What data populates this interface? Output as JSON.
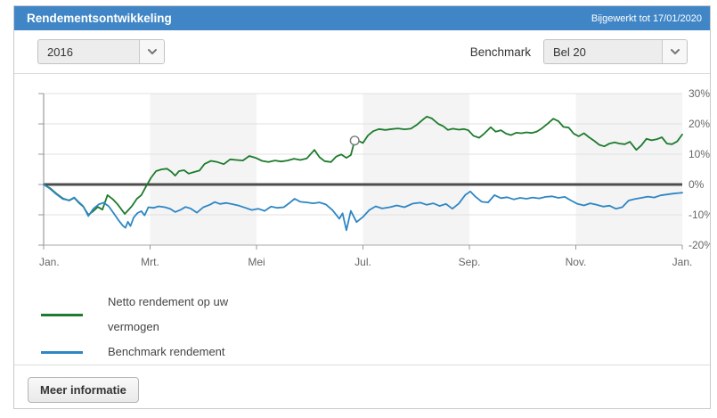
{
  "header": {
    "title": "Rendementsontwikkeling",
    "updated": "Bijgewerkt tot 17/01/2020",
    "bar_color": "#4086c6"
  },
  "controls": {
    "year_value": "2016",
    "benchmark_label": "Benchmark",
    "benchmark_value": "Bel 20"
  },
  "footer": {
    "more_info_label": "Meer informatie"
  },
  "chart_data": {
    "type": "line",
    "title": "Rendementsontwikkeling 2016",
    "x_tick_labels": [
      "Jan.",
      "Mrt.",
      "Mei",
      "Jul.",
      "Sep.",
      "Nov.",
      "Jan."
    ],
    "y_tick_labels": [
      "30%",
      "20%",
      "10%",
      "0%",
      "-10%",
      "-20%"
    ],
    "y_tick_values": [
      30,
      20,
      10,
      0,
      -10,
      -20
    ],
    "ylim": [
      -20,
      30
    ],
    "xlim_months": [
      0,
      12
    ],
    "grid": true,
    "shaded_month_bands": [
      [
        2,
        4
      ],
      [
        6,
        8
      ],
      [
        10,
        12
      ]
    ],
    "band_color": "#f4f4f4",
    "zero_line_color": "#4d4d4d",
    "legend_position": "bottom-left",
    "marker": {
      "series_index": 0,
      "x": 0.487,
      "value": 14.5
    },
    "series": [
      {
        "name": "Netto rendement op uw vermogen",
        "color": "#1e7b2d",
        "points": [
          [
            0.0,
            0.0
          ],
          [
            0.01,
            -1.2
          ],
          [
            0.02,
            -3.0
          ],
          [
            0.03,
            -4.6
          ],
          [
            0.04,
            -5.3
          ],
          [
            0.048,
            -4.4
          ],
          [
            0.055,
            -6.0
          ],
          [
            0.062,
            -7.3
          ],
          [
            0.07,
            -10.0
          ],
          [
            0.077,
            -8.9
          ],
          [
            0.085,
            -7.4
          ],
          [
            0.092,
            -8.3
          ],
          [
            0.1,
            -3.5
          ],
          [
            0.108,
            -4.8
          ],
          [
            0.116,
            -6.6
          ],
          [
            0.127,
            -9.7
          ],
          [
            0.138,
            -7.2
          ],
          [
            0.146,
            -4.7
          ],
          [
            0.153,
            -3.5
          ],
          [
            0.16,
            -0.8
          ],
          [
            0.168,
            2.2
          ],
          [
            0.176,
            4.4
          ],
          [
            0.185,
            5.0
          ],
          [
            0.193,
            5.2
          ],
          [
            0.2,
            4.2
          ],
          [
            0.206,
            2.9
          ],
          [
            0.212,
            4.4
          ],
          [
            0.22,
            4.7
          ],
          [
            0.227,
            3.6
          ],
          [
            0.235,
            4.1
          ],
          [
            0.244,
            4.6
          ],
          [
            0.252,
            6.8
          ],
          [
            0.262,
            7.8
          ],
          [
            0.272,
            7.4
          ],
          [
            0.282,
            6.7
          ],
          [
            0.292,
            8.3
          ],
          [
            0.302,
            8.1
          ],
          [
            0.312,
            7.9
          ],
          [
            0.322,
            9.4
          ],
          [
            0.332,
            8.8
          ],
          [
            0.342,
            7.8
          ],
          [
            0.352,
            7.4
          ],
          [
            0.362,
            7.9
          ],
          [
            0.372,
            7.6
          ],
          [
            0.382,
            7.9
          ],
          [
            0.392,
            8.5
          ],
          [
            0.402,
            8.1
          ],
          [
            0.412,
            8.6
          ],
          [
            0.424,
            11.4
          ],
          [
            0.432,
            9.0
          ],
          [
            0.44,
            7.7
          ],
          [
            0.45,
            7.4
          ],
          [
            0.458,
            9.2
          ],
          [
            0.466,
            9.9
          ],
          [
            0.474,
            8.8
          ],
          [
            0.481,
            9.7
          ],
          [
            0.487,
            14.5
          ],
          [
            0.494,
            14.3
          ],
          [
            0.5,
            13.7
          ],
          [
            0.508,
            16.2
          ],
          [
            0.516,
            17.6
          ],
          [
            0.525,
            18.3
          ],
          [
            0.535,
            18.0
          ],
          [
            0.545,
            18.3
          ],
          [
            0.555,
            18.5
          ],
          [
            0.565,
            18.2
          ],
          [
            0.575,
            18.4
          ],
          [
            0.585,
            19.8
          ],
          [
            0.595,
            21.6
          ],
          [
            0.6,
            22.4
          ],
          [
            0.608,
            21.8
          ],
          [
            0.618,
            20.0
          ],
          [
            0.626,
            19.2
          ],
          [
            0.633,
            18.0
          ],
          [
            0.641,
            18.4
          ],
          [
            0.65,
            18.1
          ],
          [
            0.658,
            18.3
          ],
          [
            0.665,
            17.9
          ],
          [
            0.673,
            16.1
          ],
          [
            0.682,
            15.4
          ],
          [
            0.69,
            16.8
          ],
          [
            0.7,
            18.9
          ],
          [
            0.708,
            17.4
          ],
          [
            0.716,
            17.9
          ],
          [
            0.724,
            16.8
          ],
          [
            0.732,
            16.3
          ],
          [
            0.74,
            17.1
          ],
          [
            0.748,
            16.9
          ],
          [
            0.756,
            17.2
          ],
          [
            0.764,
            17.0
          ],
          [
            0.772,
            17.4
          ],
          [
            0.78,
            18.5
          ],
          [
            0.79,
            20.2
          ],
          [
            0.798,
            21.7
          ],
          [
            0.806,
            20.9
          ],
          [
            0.814,
            19.0
          ],
          [
            0.822,
            18.8
          ],
          [
            0.83,
            16.8
          ],
          [
            0.838,
            15.9
          ],
          [
            0.846,
            16.9
          ],
          [
            0.854,
            15.6
          ],
          [
            0.862,
            14.4
          ],
          [
            0.87,
            13.1
          ],
          [
            0.878,
            12.6
          ],
          [
            0.886,
            13.5
          ],
          [
            0.894,
            13.9
          ],
          [
            0.902,
            13.5
          ],
          [
            0.91,
            13.3
          ],
          [
            0.918,
            14.1
          ],
          [
            0.928,
            11.4
          ],
          [
            0.936,
            12.9
          ],
          [
            0.944,
            15.1
          ],
          [
            0.952,
            14.6
          ],
          [
            0.96,
            14.9
          ],
          [
            0.968,
            15.6
          ],
          [
            0.976,
            13.5
          ],
          [
            0.984,
            13.3
          ],
          [
            0.992,
            14.2
          ],
          [
            1.0,
            16.5
          ]
        ]
      },
      {
        "name": "Benchmark rendement",
        "color": "#2e86c4",
        "points": [
          [
            0.0,
            0.0
          ],
          [
            0.01,
            -1.4
          ],
          [
            0.02,
            -3.2
          ],
          [
            0.03,
            -4.8
          ],
          [
            0.04,
            -5.2
          ],
          [
            0.048,
            -4.3
          ],
          [
            0.055,
            -5.8
          ],
          [
            0.062,
            -7.2
          ],
          [
            0.07,
            -10.4
          ],
          [
            0.078,
            -8.0
          ],
          [
            0.086,
            -6.6
          ],
          [
            0.094,
            -6.0
          ],
          [
            0.102,
            -7.2
          ],
          [
            0.11,
            -9.6
          ],
          [
            0.118,
            -12.0
          ],
          [
            0.124,
            -13.6
          ],
          [
            0.128,
            -14.3
          ],
          [
            0.132,
            -12.3
          ],
          [
            0.136,
            -13.7
          ],
          [
            0.141,
            -10.9
          ],
          [
            0.147,
            -9.4
          ],
          [
            0.153,
            -8.8
          ],
          [
            0.158,
            -10.2
          ],
          [
            0.164,
            -7.5
          ],
          [
            0.172,
            -7.7
          ],
          [
            0.18,
            -7.2
          ],
          [
            0.19,
            -7.5
          ],
          [
            0.198,
            -8.0
          ],
          [
            0.206,
            -9.1
          ],
          [
            0.214,
            -8.4
          ],
          [
            0.222,
            -7.4
          ],
          [
            0.23,
            -7.9
          ],
          [
            0.24,
            -9.3
          ],
          [
            0.25,
            -7.5
          ],
          [
            0.26,
            -6.7
          ],
          [
            0.268,
            -5.8
          ],
          [
            0.276,
            -6.4
          ],
          [
            0.286,
            -6.1
          ],
          [
            0.296,
            -6.5
          ],
          [
            0.306,
            -7.0
          ],
          [
            0.316,
            -7.7
          ],
          [
            0.326,
            -8.4
          ],
          [
            0.336,
            -8.0
          ],
          [
            0.346,
            -8.7
          ],
          [
            0.356,
            -7.3
          ],
          [
            0.366,
            -7.7
          ],
          [
            0.376,
            -7.5
          ],
          [
            0.386,
            -5.9
          ],
          [
            0.393,
            -4.7
          ],
          [
            0.402,
            -5.7
          ],
          [
            0.412,
            -5.9
          ],
          [
            0.422,
            -6.2
          ],
          [
            0.432,
            -5.9
          ],
          [
            0.442,
            -6.6
          ],
          [
            0.452,
            -8.4
          ],
          [
            0.463,
            -11.3
          ],
          [
            0.468,
            -9.5
          ],
          [
            0.474,
            -15.1
          ],
          [
            0.481,
            -8.7
          ],
          [
            0.49,
            -12.4
          ],
          [
            0.5,
            -10.7
          ],
          [
            0.51,
            -8.4
          ],
          [
            0.52,
            -7.2
          ],
          [
            0.53,
            -7.9
          ],
          [
            0.542,
            -7.5
          ],
          [
            0.553,
            -6.9
          ],
          [
            0.565,
            -7.5
          ],
          [
            0.578,
            -6.3
          ],
          [
            0.59,
            -6.0
          ],
          [
            0.6,
            -6.7
          ],
          [
            0.61,
            -6.2
          ],
          [
            0.62,
            -7.1
          ],
          [
            0.63,
            -6.4
          ],
          [
            0.64,
            -8.0
          ],
          [
            0.65,
            -6.3
          ],
          [
            0.66,
            -3.5
          ],
          [
            0.668,
            -2.3
          ],
          [
            0.676,
            -4.0
          ],
          [
            0.686,
            -5.7
          ],
          [
            0.696,
            -5.9
          ],
          [
            0.706,
            -3.5
          ],
          [
            0.716,
            -4.5
          ],
          [
            0.726,
            -4.2
          ],
          [
            0.736,
            -4.9
          ],
          [
            0.746,
            -4.4
          ],
          [
            0.756,
            -4.7
          ],
          [
            0.766,
            -4.3
          ],
          [
            0.776,
            -4.6
          ],
          [
            0.786,
            -4.1
          ],
          [
            0.796,
            -3.9
          ],
          [
            0.806,
            -4.4
          ],
          [
            0.816,
            -4.1
          ],
          [
            0.826,
            -5.3
          ],
          [
            0.836,
            -6.4
          ],
          [
            0.846,
            -6.9
          ],
          [
            0.856,
            -6.2
          ],
          [
            0.866,
            -6.7
          ],
          [
            0.876,
            -7.3
          ],
          [
            0.886,
            -7.0
          ],
          [
            0.896,
            -8.0
          ],
          [
            0.906,
            -7.5
          ],
          [
            0.916,
            -5.3
          ],
          [
            0.926,
            -4.8
          ],
          [
            0.936,
            -4.4
          ],
          [
            0.946,
            -4.0
          ],
          [
            0.956,
            -4.3
          ],
          [
            0.966,
            -3.6
          ],
          [
            0.976,
            -3.3
          ],
          [
            0.986,
            -3.0
          ],
          [
            1.0,
            -2.7
          ]
        ]
      }
    ]
  }
}
